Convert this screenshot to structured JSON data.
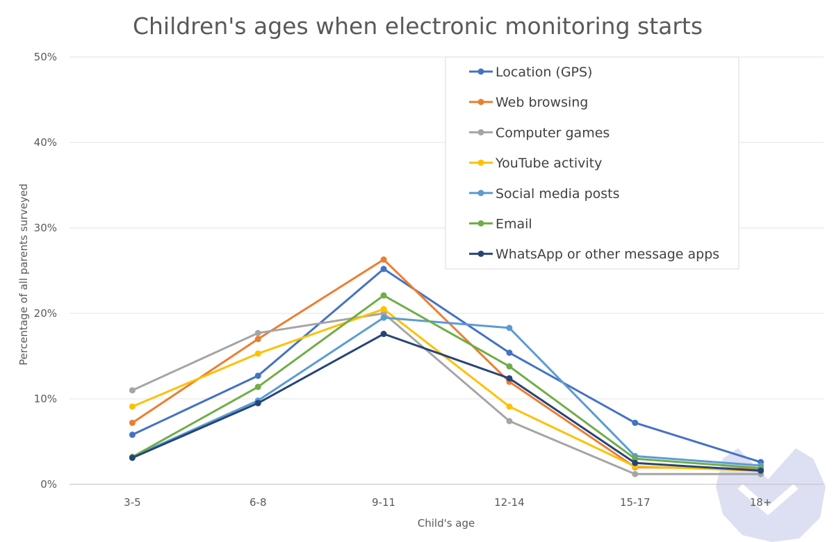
{
  "chart_data": {
    "type": "line",
    "title": "Children's ages when electronic monitoring starts",
    "xlabel": "Child's age",
    "ylabel": "Percentage of all parents surveyed",
    "categories": [
      "3-5",
      "6-8",
      "9-11",
      "12-14",
      "15-17",
      "18+"
    ],
    "ylim": [
      0,
      50
    ],
    "yticks": [
      "0%",
      "10%",
      "20%",
      "30%",
      "40%",
      "50%"
    ],
    "grid": true,
    "legend_position": "top-right",
    "series": [
      {
        "name": "Location (GPS)",
        "color": "#4472C4",
        "values": [
          5.8,
          12.7,
          25.2,
          15.4,
          7.2,
          2.6
        ]
      },
      {
        "name": "Web browsing",
        "color": "#ED7D31",
        "values": [
          7.2,
          17.0,
          26.3,
          12.0,
          2.0,
          1.8
        ]
      },
      {
        "name": "Computer games",
        "color": "#A5A5A5",
        "values": [
          11.0,
          17.7,
          20.0,
          7.4,
          1.2,
          1.2
        ]
      },
      {
        "name": "YouTube activity",
        "color": "#FFC000",
        "values": [
          9.1,
          15.3,
          20.5,
          9.1,
          2.1,
          1.6
        ]
      },
      {
        "name": "Social media posts",
        "color": "#5B9BD5",
        "values": [
          3.2,
          9.8,
          19.5,
          18.3,
          3.3,
          2.2
        ]
      },
      {
        "name": "Email",
        "color": "#70AD47",
        "values": [
          3.2,
          11.4,
          22.1,
          13.8,
          3.0,
          1.9
        ]
      },
      {
        "name": "WhatsApp or other message apps",
        "color": "#264478",
        "values": [
          3.1,
          9.5,
          17.6,
          12.4,
          2.5,
          1.6
        ]
      }
    ]
  }
}
